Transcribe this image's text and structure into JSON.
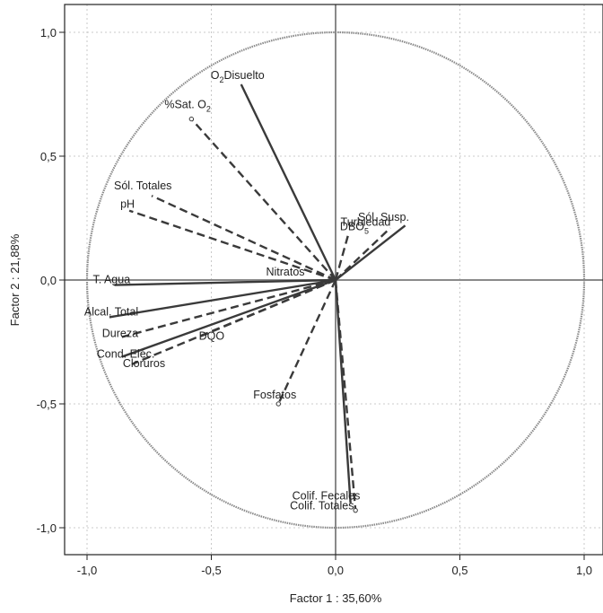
{
  "chart_data": {
    "type": "scatter",
    "subtype": "pca-correlation-circle",
    "title": "",
    "xlabel": "Factor 1 : 35,60%",
    "ylabel": "Factor 2 : 21,88%",
    "xlim": [
      -1.1,
      1.1
    ],
    "ylim": [
      -1.1,
      1.1
    ],
    "x_ticks": [
      -1.0,
      -0.5,
      0.0,
      0.5,
      1.0
    ],
    "x_tick_labels": [
      "-1,0",
      "-0,5",
      "0,0",
      "0,5",
      "1,0"
    ],
    "y_ticks": [
      1.0,
      0.5,
      0.0,
      -0.5,
      -1.0
    ],
    "y_tick_labels": [
      "1,0",
      "0,5",
      "0,0",
      "-0,5",
      "-1,0"
    ],
    "grid": true,
    "unit_circle": true,
    "zero_lines": true,
    "colors": {
      "vector": "#3a3a3a",
      "circle": "#8a8a8a",
      "axis_line": "#8a8a8a",
      "grid": "#bbbbbb",
      "text": "#222222"
    },
    "variables": [
      {
        "name": "O2Disuelto",
        "label_main": "O",
        "label_sub": "2",
        "label_rest": "Disuelto",
        "x": -0.38,
        "y": 0.79,
        "style": "solid",
        "has_marker": false
      },
      {
        "name": "%Sat. O2",
        "label_main": "%Sat. O",
        "label_sub": "2",
        "label_rest": "",
        "x": -0.58,
        "y": 0.65,
        "style": "dashed",
        "has_marker": true
      },
      {
        "name": "Sól. Totales",
        "label_main": "Sól. Totales",
        "label_sub": "",
        "label_rest": "",
        "x": -0.74,
        "y": 0.34,
        "style": "dashed",
        "has_marker": false
      },
      {
        "name": "pH",
        "label_main": "pH",
        "label_sub": "",
        "label_rest": "",
        "x": -0.83,
        "y": 0.28,
        "style": "dashed",
        "has_marker": false
      },
      {
        "name": "T. Agua",
        "label_main": "T. Agua",
        "label_sub": "",
        "label_rest": "",
        "x": -0.89,
        "y": -0.02,
        "style": "solid",
        "has_marker": false
      },
      {
        "name": "Alcal. Total",
        "label_main": "Alcal. Total",
        "label_sub": "",
        "label_rest": "",
        "x": -0.91,
        "y": -0.15,
        "style": "solid",
        "has_marker": false
      },
      {
        "name": "Dureza",
        "label_main": "Dureza",
        "label_sub": "",
        "label_rest": "",
        "x": -0.86,
        "y": -0.23,
        "style": "dashed",
        "has_marker": false
      },
      {
        "name": "DQO",
        "label_main": "DQO",
        "label_sub": "",
        "label_rest": "",
        "x": -0.55,
        "y": -0.23,
        "style": "dashed",
        "has_marker": false
      },
      {
        "name": "Cond. Eléc.",
        "label_main": "Cond. Eléc.",
        "label_sub": "",
        "label_rest": "",
        "x": -0.86,
        "y": -0.31,
        "style": "solid",
        "has_marker": false
      },
      {
        "name": "Cloruros",
        "label_main": "Cloruros",
        "label_sub": "",
        "label_rest": "",
        "x": -0.82,
        "y": -0.34,
        "style": "dashed",
        "has_marker": false
      },
      {
        "name": "Nitratos",
        "label_main": "Nitratos",
        "label_sub": "",
        "label_rest": "",
        "x": -0.02,
        "y": 0.01,
        "style": "dashed",
        "has_marker": false
      },
      {
        "name": "Fosfatos",
        "label_main": "Fosfatos",
        "label_sub": "",
        "label_rest": "",
        "x": -0.23,
        "y": -0.5,
        "style": "dashed",
        "has_marker": true
      },
      {
        "name": "DBO5",
        "label_main": "DBO",
        "label_sub": "5",
        "label_rest": "",
        "x": 0.05,
        "y": 0.18,
        "style": "dashed",
        "has_marker": false
      },
      {
        "name": "Turbiedad",
        "label_main": "Turbiedad",
        "label_sub": "",
        "label_rest": "",
        "x": 0.28,
        "y": 0.22,
        "style": "solid",
        "has_marker": false
      },
      {
        "name": "Sól. Susp.",
        "label_main": "Sól. Susp.",
        "label_sub": "",
        "label_rest": "",
        "x": 0.22,
        "y": 0.21,
        "style": "dashed",
        "has_marker": false
      },
      {
        "name": "Colif. Totales",
        "label_main": "Colif. Totales",
        "label_sub": "",
        "label_rest": "",
        "x": 0.08,
        "y": -0.93,
        "style": "dashed",
        "has_marker": true
      },
      {
        "name": "Colif. Fecales",
        "label_main": "Colif. Fecales",
        "label_sub": "",
        "label_rest": "",
        "x": 0.06,
        "y": -0.9,
        "style": "solid",
        "has_marker": false
      }
    ]
  }
}
